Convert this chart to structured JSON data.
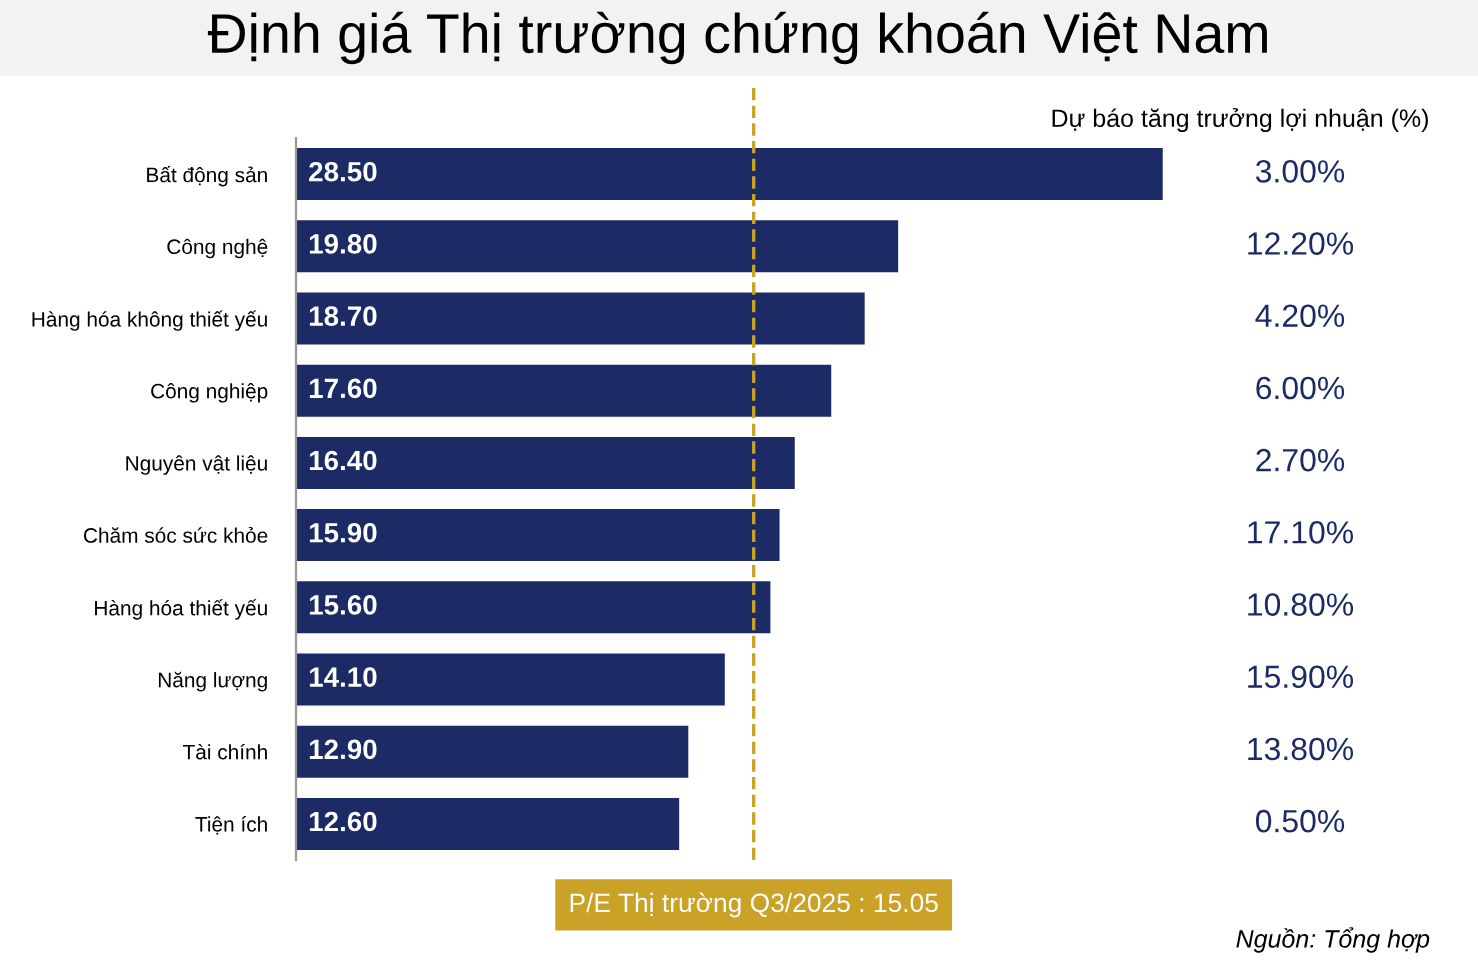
{
  "chart_data": {
    "type": "bar",
    "orientation": "horizontal",
    "title": "Định giá Thị trường chứng khoán Việt Nam",
    "categories": [
      "Bất động sản",
      "Công nghệ",
      "Hàng hóa không thiết yếu",
      "Công nghiệp",
      "Nguyên vật liệu",
      "Chăm sóc sức khỏe",
      "Hàng hóa thiết yếu",
      "Năng lượng",
      "Tài chính",
      "Tiện ích"
    ],
    "values": [
      28.5,
      19.8,
      18.7,
      17.6,
      16.4,
      15.9,
      15.6,
      14.1,
      12.9,
      12.6
    ],
    "value_labels": [
      "28.50",
      "19.80",
      "18.70",
      "17.60",
      "16.40",
      "15.90",
      "15.60",
      "14.10",
      "12.90",
      "12.60"
    ],
    "color": "#1c2b66",
    "ref_lines": [
      {
        "axis": "x",
        "value": 15.05,
        "label": "P/E Thị trường Q3/2025 : 15.05",
        "color": "#c9a227",
        "line_style": "dashed"
      }
    ],
    "annotations": [
      "Dự báo tăng trưởng lợi nhuận (%)",
      "3.00%",
      "12.20%",
      "4.20%",
      "6.00%",
      "2.70%",
      "17.10%",
      "10.80%",
      "15.90%",
      "13.80%",
      "0.50%",
      "Nguồn: Tổng hợp"
    ],
    "tick_labels": "y",
    "grid": false,
    "legend": false
  }
}
